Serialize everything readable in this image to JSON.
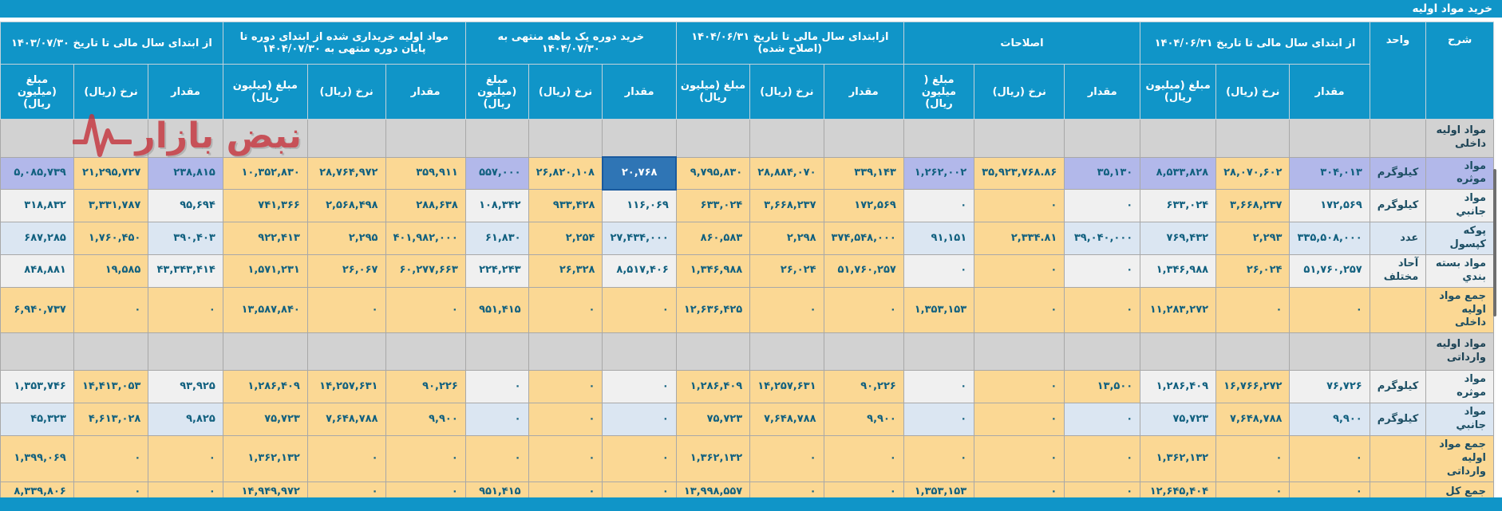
{
  "title": "خرید مواد اولیه",
  "watermark": {
    "text": "نبض بازار"
  },
  "colors": {
    "header_blue": "#1095c8",
    "rate_highlight_tan": "#fbd894",
    "row_white": "#f0f0f0",
    "row_lightblue": "#dbe6f2",
    "row_lavender": "#b2b8ea",
    "selected_cell_blue": "#2f75b5",
    "section_gray": "#d2d2d2",
    "text_dark": "#11607f",
    "watermark_red": "#c5313a"
  },
  "table": {
    "corner_headers": [
      "شرح",
      "واحد"
    ],
    "groups": [
      {
        "label": "از ابتدای سال مالی تا تاریخ ۱۴۰۴/۰۶/۳۱",
        "cols": [
          "مقدار",
          "نرخ (ریال)",
          "مبلغ (میلیون ریال)"
        ]
      },
      {
        "label": "اصلاحات",
        "cols": [
          "مقدار",
          "نرخ (ریال)",
          "مبلغ ( میلیون ریال)"
        ]
      },
      {
        "label": "ازابتدای سال مالی تا تاریخ ۱۴۰۴/۰۶/۳۱ (اصلاح شده)",
        "cols": [
          "مقدار",
          "نرخ (ریال)",
          "مبلغ (میلیون ریال)"
        ]
      },
      {
        "label": "خرید دوره یک ماهه منتهی به ۱۴۰۴/۰۷/۳۰",
        "cols": [
          "مقدار",
          "نرخ (ریال)",
          "مبلغ (میلیون ریال)"
        ]
      },
      {
        "label": "مواد اولیه خریداری شده از ابتدای دوره تا پایان دوره منتهی به ۱۴۰۴/۰۷/۳۰",
        "cols": [
          "مقدار",
          "نرخ (ریال)",
          "مبلغ (میلیون ریال)"
        ]
      },
      {
        "label": "از ابتدای سال مالی تا تاریخ ۱۴۰۳/۰۷/۳۰",
        "cols": [
          "مقدار",
          "نرخ (ریال)",
          "مبلغ (میلیون ریال)"
        ]
      }
    ],
    "rows": [
      {
        "type": "section",
        "label": "مواد اولیه داخلی"
      },
      {
        "type": "data",
        "label": "مواد موثره",
        "unit": "کیلوگرم",
        "lbg": "p",
        "values": [
          "۳۰۴,۰۱۳",
          "۲۸,۰۷۰,۶۰۲",
          "۸,۵۳۳,۸۲۸",
          "۳۵,۱۳۰",
          "۳۵,۹۲۳,۷۶۸.۸۶",
          "۱,۲۶۲,۰۰۲",
          "۳۳۹,۱۴۳",
          "۲۸,۸۸۴,۰۷۰",
          "۹,۷۹۵,۸۳۰",
          "۲۰,۷۶۸",
          "۲۶,۸۲۰,۱۰۸",
          "۵۵۷,۰۰۰",
          "۳۵۹,۹۱۱",
          "۲۸,۷۶۴,۹۷۲",
          "۱۰,۳۵۲,۸۳۰",
          "۲۳۸,۸۱۵",
          "۲۱,۲۹۵,۷۲۷",
          "۵,۰۸۵,۷۳۹"
        ],
        "bgs": [
          "p",
          "t",
          "p",
          "p",
          "t",
          "p",
          "t",
          "t",
          "t",
          "s",
          "t",
          "p",
          "t",
          "t",
          "t",
          "p",
          "t",
          "p"
        ]
      },
      {
        "type": "data",
        "label": "مواد جانبي",
        "unit": "کیلوگرم",
        "lbg": "w",
        "values": [
          "۱۷۲,۵۶۹",
          "۳,۶۶۸,۲۳۷",
          "۶۳۳,۰۲۴",
          "۰",
          "۰",
          "۰",
          "۱۷۲,۵۶۹",
          "۳,۶۶۸,۲۳۷",
          "۶۳۳,۰۲۴",
          "۱۱۶,۰۶۹",
          "۹۳۳,۴۲۸",
          "۱۰۸,۳۴۲",
          "۲۸۸,۶۳۸",
          "۲,۵۶۸,۴۹۸",
          "۷۴۱,۳۶۶",
          "۹۵,۶۹۴",
          "۳,۳۳۱,۷۸۷",
          "۳۱۸,۸۳۲"
        ],
        "bgs": [
          "w",
          "t",
          "w",
          "w",
          "t",
          "w",
          "t",
          "t",
          "t",
          "w",
          "t",
          "w",
          "t",
          "t",
          "t",
          "w",
          "t",
          "w"
        ]
      },
      {
        "type": "data",
        "label": "پوکه کپسول",
        "unit": "عدد",
        "lbg": "b",
        "values": [
          "۳۳۵,۵۰۸,۰۰۰",
          "۲,۲۹۳",
          "۷۶۹,۴۳۲",
          "۳۹,۰۴۰,۰۰۰",
          "۲,۳۳۴.۸۱",
          "۹۱,۱۵۱",
          "۳۷۴,۵۴۸,۰۰۰",
          "۲,۲۹۸",
          "۸۶۰,۵۸۳",
          "۲۷,۴۳۴,۰۰۰",
          "۲,۲۵۴",
          "۶۱,۸۳۰",
          "۴۰۱,۹۸۲,۰۰۰",
          "۲,۲۹۵",
          "۹۲۲,۴۱۳",
          "۳۹۰,۴۰۳",
          "۱,۷۶۰,۴۵۰",
          "۶۸۷,۲۸۵"
        ],
        "bgs": [
          "b",
          "t",
          "b",
          "b",
          "t",
          "b",
          "t",
          "t",
          "t",
          "b",
          "t",
          "b",
          "t",
          "t",
          "t",
          "b",
          "t",
          "b"
        ]
      },
      {
        "type": "data",
        "label": "مواد بسته بندي",
        "unit": "آحاد مختلف",
        "lbg": "w",
        "values": [
          "۵۱,۷۶۰,۲۵۷",
          "۲۶,۰۲۴",
          "۱,۳۴۶,۹۸۸",
          "۰",
          "۰",
          "۰",
          "۵۱,۷۶۰,۲۵۷",
          "۲۶,۰۲۴",
          "۱,۳۴۶,۹۸۸",
          "۸,۵۱۷,۴۰۶",
          "۲۶,۳۲۸",
          "۲۲۴,۲۴۳",
          "۶۰,۲۷۷,۶۶۳",
          "۲۶,۰۶۷",
          "۱,۵۷۱,۲۳۱",
          "۴۳,۳۴۳,۴۱۴",
          "۱۹,۵۸۵",
          "۸۴۸,۸۸۱"
        ],
        "bgs": [
          "w",
          "t",
          "w",
          "w",
          "t",
          "w",
          "t",
          "t",
          "t",
          "w",
          "t",
          "w",
          "t",
          "t",
          "t",
          "w",
          "t",
          "w"
        ]
      },
      {
        "type": "data",
        "label": "جمع مواد اولیه داخلی",
        "unit": "",
        "lbg": "t",
        "values": [
          "۰",
          "۰",
          "۱۱,۲۸۳,۲۷۲",
          "۰",
          "۰",
          "۱,۳۵۳,۱۵۳",
          "۰",
          "۰",
          "۱۲,۶۳۶,۴۲۵",
          "۰",
          "۰",
          "۹۵۱,۴۱۵",
          "۰",
          "۰",
          "۱۳,۵۸۷,۸۴۰",
          "۰",
          "۰",
          "۶,۹۴۰,۷۳۷"
        ],
        "bgs": [
          "t",
          "t",
          "t",
          "t",
          "t",
          "t",
          "t",
          "t",
          "t",
          "t",
          "t",
          "t",
          "t",
          "t",
          "t",
          "t",
          "t",
          "t"
        ]
      },
      {
        "type": "section",
        "label": "مواد اولیه وارداتی"
      },
      {
        "type": "data",
        "label": "مواد موثره",
        "unit": "کیلوگرم",
        "lbg": "w",
        "values": [
          "۷۶,۷۲۶",
          "۱۶,۷۶۶,۲۷۲",
          "۱,۲۸۶,۴۰۹",
          "۱۳,۵۰۰",
          "۰",
          "۰",
          "۹۰,۲۲۶",
          "۱۴,۲۵۷,۶۳۱",
          "۱,۲۸۶,۴۰۹",
          "۰",
          "۰",
          "۰",
          "۹۰,۲۲۶",
          "۱۴,۲۵۷,۶۳۱",
          "۱,۲۸۶,۴۰۹",
          "۹۳,۹۲۵",
          "۱۴,۴۱۳,۰۵۳",
          "۱,۳۵۳,۷۴۶"
        ],
        "bgs": [
          "w",
          "t",
          "w",
          "t",
          "t",
          "w",
          "t",
          "t",
          "t",
          "w",
          "t",
          "w",
          "t",
          "t",
          "t",
          "w",
          "t",
          "w"
        ]
      },
      {
        "type": "data",
        "label": "مواد جانبي",
        "unit": "کیلوگرم",
        "lbg": "b",
        "values": [
          "۹,۹۰۰",
          "۷,۶۴۸,۷۸۸",
          "۷۵,۷۲۳",
          "۰",
          "۰",
          "۰",
          "۹,۹۰۰",
          "۷,۶۴۸,۷۸۸",
          "۷۵,۷۲۳",
          "۰",
          "۰",
          "۰",
          "۹,۹۰۰",
          "۷,۶۴۸,۷۸۸",
          "۷۵,۷۲۳",
          "۹,۸۲۵",
          "۴,۶۱۳,۰۲۸",
          "۴۵,۳۲۳"
        ],
        "bgs": [
          "b",
          "t",
          "b",
          "b",
          "t",
          "b",
          "t",
          "t",
          "t",
          "b",
          "t",
          "b",
          "t",
          "t",
          "t",
          "b",
          "t",
          "b"
        ]
      },
      {
        "type": "data",
        "label": "جمع مواد اولیه وارداتی",
        "unit": "",
        "lbg": "t",
        "values": [
          "۰",
          "۰",
          "۱,۳۶۲,۱۳۲",
          "۰",
          "۰",
          "۰",
          "۰",
          "۰",
          "۱,۳۶۲,۱۳۲",
          "۰",
          "۰",
          "۰",
          "۰",
          "۰",
          "۱,۳۶۲,۱۳۲",
          "۰",
          "۰",
          "۱,۳۹۹,۰۶۹"
        ],
        "bgs": [
          "t",
          "t",
          "t",
          "t",
          "t",
          "t",
          "t",
          "t",
          "t",
          "t",
          "t",
          "t",
          "t",
          "t",
          "t",
          "t",
          "t",
          "t"
        ]
      },
      {
        "type": "data",
        "label": "جمع کل",
        "unit": "",
        "lbg": "t",
        "values": [
          "۰",
          "۰",
          "۱۲,۶۴۵,۴۰۴",
          "۰",
          "۰",
          "۱,۳۵۳,۱۵۳",
          "۰",
          "۰",
          "۱۳,۹۹۸,۵۵۷",
          "۰",
          "۰",
          "۹۵۱,۴۱۵",
          "۰",
          "۰",
          "۱۴,۹۴۹,۹۷۲",
          "۰",
          "۰",
          "۸,۳۳۹,۸۰۶"
        ],
        "bgs": [
          "t",
          "t",
          "t",
          "t",
          "t",
          "t",
          "t",
          "t",
          "t",
          "t",
          "t",
          "t",
          "t",
          "t",
          "t",
          "t",
          "t",
          "t"
        ]
      }
    ]
  }
}
